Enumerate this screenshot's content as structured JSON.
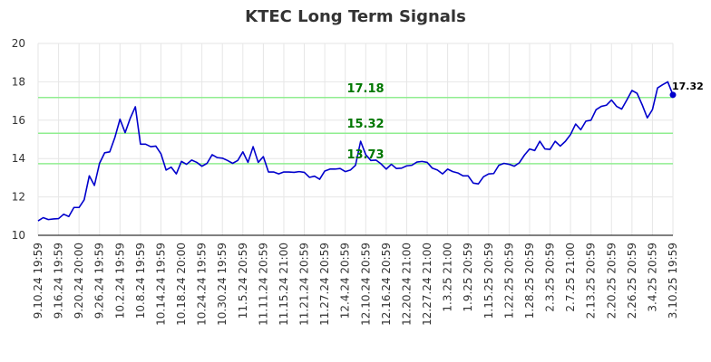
{
  "chart_data": {
    "type": "line",
    "title": "KTEC Long Term Signals",
    "xlabel": "",
    "ylabel": "",
    "ylim": [
      10,
      20
    ],
    "yticks": [
      10,
      12,
      14,
      16,
      18,
      20
    ],
    "grid": true,
    "x_tick_labels": [
      "9.10.24 19:59",
      "9.16.24 19:59",
      "9.20.24 20:00",
      "9.26.24 19:59",
      "10.2.24 19:59",
      "10.8.24 19:59",
      "10.14.24 19:59",
      "10.18.24 20:00",
      "10.24.24 19:59",
      "10.30.24 19:59",
      "11.5.24 20:59",
      "11.11.24 20:59",
      "11.15.24 21:00",
      "11.21.24 20:59",
      "11.27.24 20:59",
      "12.4.24 20:59",
      "12.10.24 20:59",
      "12.16.24 20:59",
      "12.20.24 21:00",
      "12.27.24 21:00",
      "1.3.25 21:00",
      "1.9.25 20:59",
      "1.15.25 20:59",
      "1.22.25 20:59",
      "1.28.25 20:59",
      "2.3.25 20:59",
      "2.7.25 21:00",
      "2.13.25 20:59",
      "2.20.25 20:59",
      "2.26.25 20:59",
      "3.4.25 20:59",
      "3.10.25 19:59"
    ],
    "series": [
      {
        "color": "#0000cc",
        "values": [
          10.75,
          10.92,
          10.82,
          10.85,
          10.87,
          11.1,
          10.98,
          11.45,
          11.45,
          11.85,
          13.1,
          12.6,
          13.75,
          14.3,
          14.35,
          15.1,
          16.05,
          15.35,
          16.1,
          16.7,
          14.75,
          14.75,
          14.62,
          14.65,
          14.25,
          13.4,
          13.55,
          13.2,
          13.85,
          13.7,
          13.92,
          13.8,
          13.6,
          13.75,
          14.2,
          14.05,
          14.02,
          13.9,
          13.75,
          13.9,
          14.35,
          13.8,
          14.62,
          13.8,
          14.1,
          13.3,
          13.3,
          13.2,
          13.3,
          13.3,
          13.28,
          13.32,
          13.28,
          13.02,
          13.08,
          12.92,
          13.35,
          13.45,
          13.45,
          13.48,
          13.32,
          13.4,
          13.65,
          14.9,
          14.2,
          13.9,
          13.92,
          13.72,
          13.45,
          13.7,
          13.48,
          13.5,
          13.62,
          13.65,
          13.82,
          13.85,
          13.8,
          13.5,
          13.4,
          13.2,
          13.45,
          13.32,
          13.25,
          13.1,
          13.1,
          12.72,
          12.68,
          13.05,
          13.2,
          13.22,
          13.65,
          13.75,
          13.7,
          13.6,
          13.78,
          14.18,
          14.5,
          14.42,
          14.9,
          14.5,
          14.48,
          14.9,
          14.65,
          14.9,
          15.25,
          15.8,
          15.5,
          15.95,
          16.0,
          16.55,
          16.72,
          16.78,
          17.05,
          16.72,
          16.58,
          17.05,
          17.55,
          17.4,
          16.8,
          16.12,
          16.55,
          17.68,
          17.85,
          18.0,
          17.32
        ]
      }
    ],
    "reference_lines": [
      {
        "value": 17.18,
        "label": "17.18",
        "color": "#90ee90"
      },
      {
        "value": 15.32,
        "label": "15.32",
        "color": "#90ee90"
      },
      {
        "value": 13.73,
        "label": "13.73",
        "color": "#90ee90"
      }
    ],
    "last_value_label": "17.32"
  }
}
